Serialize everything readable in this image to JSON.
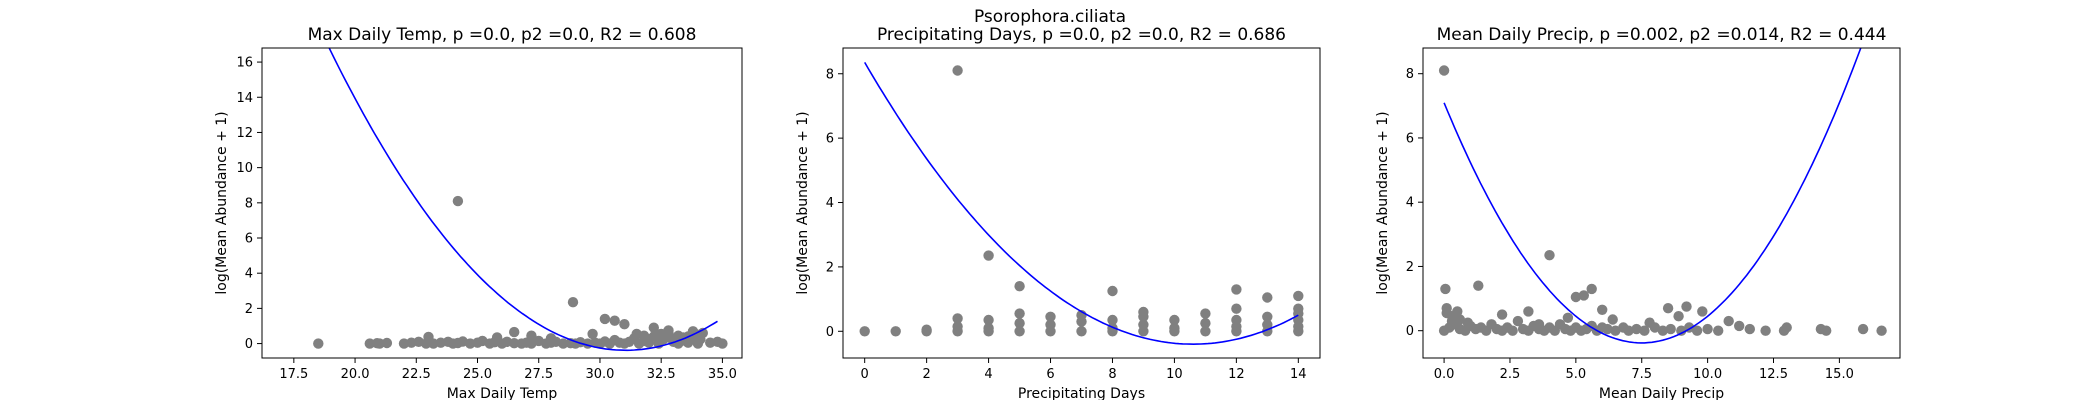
{
  "figure": {
    "suptitle": "Psorophora.ciliata"
  },
  "colors": {
    "points": "#808080",
    "fit": "#0000ff",
    "axes": "#000000"
  },
  "chart_data": [
    {
      "type": "scatter",
      "title": "Max Daily Temp, p =0.0, p2 =0.0, R2 = 0.608",
      "xlabel": "Max Daily Temp",
      "ylabel": "log(Mean Abundance + 1)",
      "xlim": [
        16.2,
        35.8
      ],
      "ylim": [
        -0.82,
        16.8
      ],
      "xticks": [
        17.5,
        20.0,
        22.5,
        25.0,
        27.5,
        30.0,
        32.5,
        35.0
      ],
      "xtick_labels": [
        "17.5",
        "20.0",
        "22.5",
        "25.0",
        "27.5",
        "30.0",
        "32.5",
        "35.0"
      ],
      "yticks": [
        0,
        2,
        4,
        6,
        8,
        10,
        12,
        14,
        16
      ],
      "ytick_labels": [
        "0",
        "2",
        "4",
        "6",
        "8",
        "10",
        "12",
        "14",
        "16"
      ],
      "points": {
        "x": [
          18.5,
          20.6,
          20.9,
          21.0,
          21.3,
          22.0,
          22.3,
          22.6,
          22.9,
          23.0,
          23.2,
          23.5,
          23.8,
          24.0,
          24.2,
          24.4,
          24.7,
          25.0,
          25.2,
          25.5,
          25.7,
          26.0,
          26.2,
          26.5,
          26.8,
          27.0,
          27.2,
          27.5,
          27.8,
          28.0,
          28.2,
          28.5,
          28.8,
          29.0,
          29.2,
          29.5,
          29.8,
          30.0,
          30.2,
          30.4,
          30.6,
          30.8,
          31.0,
          31.2,
          31.4,
          31.6,
          31.8,
          32.0,
          32.2,
          32.4,
          32.6,
          32.8,
          33.0,
          33.2,
          33.4,
          33.6,
          33.8,
          34.0,
          34.2,
          34.5,
          34.8,
          35.0,
          24.2,
          28.9,
          30.6,
          31.0,
          32.2,
          32.5,
          32.8,
          33.2,
          33.6,
          34.0,
          33.9,
          32.0,
          29.7,
          26.5,
          27.2,
          28.0,
          23.0,
          31.5,
          32.9,
          33.5,
          34.1,
          30.2,
          25.8,
          31.8
        ],
        "y": [
          0.0,
          0.0,
          0.02,
          0.0,
          0.03,
          0.0,
          0.05,
          0.1,
          0.0,
          0.38,
          0.0,
          0.05,
          0.1,
          0.0,
          0.03,
          0.12,
          0.0,
          0.05,
          0.15,
          0.0,
          0.08,
          0.0,
          0.1,
          0.02,
          0.0,
          0.05,
          0.0,
          0.15,
          0.0,
          0.05,
          0.1,
          0.0,
          0.02,
          0.0,
          0.08,
          0.0,
          0.05,
          0.0,
          0.12,
          0.0,
          0.2,
          0.05,
          0.0,
          0.1,
          0.3,
          0.0,
          0.15,
          0.05,
          0.4,
          0.0,
          0.25,
          0.6,
          0.1,
          0.0,
          0.35,
          0.05,
          0.7,
          0.0,
          0.6,
          0.05,
          0.1,
          0.0,
          8.1,
          2.35,
          1.3,
          1.1,
          0.9,
          0.55,
          0.75,
          0.45,
          0.4,
          0.5,
          0.2,
          0.25,
          0.55,
          0.65,
          0.45,
          0.3,
          0.2,
          0.55,
          0.3,
          0.15,
          0.25,
          1.4,
          0.35,
          0.45
        ]
      },
      "fit": {
        "a": 0.1172,
        "vertex_x": 31.05,
        "vertex_y": -0.38,
        "x_range": [
          17.1,
          34.8
        ]
      }
    },
    {
      "type": "scatter",
      "title": "Precipitating Days, p =0.0, p2 =0.0, R2 = 0.686",
      "xlabel": "Precipitating Days",
      "ylabel": "log(Mean Abundance + 1)",
      "xlim": [
        -0.7,
        14.7
      ],
      "ylim": [
        -0.83,
        8.8
      ],
      "xticks": [
        0,
        2,
        4,
        6,
        8,
        10,
        12,
        14
      ],
      "xtick_labels": [
        "0",
        "2",
        "4",
        "6",
        "8",
        "10",
        "12",
        "14"
      ],
      "yticks": [
        0,
        2,
        4,
        6,
        8
      ],
      "ytick_labels": [
        "0",
        "2",
        "4",
        "6",
        "8"
      ],
      "points": {
        "x": [
          0,
          1,
          2,
          2,
          3,
          3,
          3,
          3,
          4,
          4,
          4,
          4,
          5,
          5,
          5,
          5,
          6,
          6,
          6,
          7,
          7,
          7,
          8,
          8,
          8,
          8,
          9,
          9,
          9,
          9,
          10,
          10,
          10,
          11,
          11,
          11,
          12,
          12,
          12,
          12,
          12,
          13,
          13,
          13,
          13,
          14,
          14,
          14,
          14,
          14,
          14
        ],
        "y": [
          0.0,
          0.0,
          0.0,
          0.05,
          8.1,
          0.4,
          0.15,
          0.0,
          2.35,
          0.35,
          0.1,
          0.0,
          1.4,
          0.55,
          0.25,
          0.0,
          0.45,
          0.2,
          0.0,
          0.5,
          0.3,
          0.0,
          1.25,
          0.35,
          0.1,
          0.0,
          0.6,
          0.45,
          0.2,
          0.0,
          0.35,
          0.1,
          0.0,
          0.55,
          0.25,
          0.0,
          1.3,
          0.7,
          0.35,
          0.15,
          0.0,
          1.05,
          0.45,
          0.2,
          0.0,
          1.1,
          0.7,
          0.55,
          0.35,
          0.15,
          0.0
        ]
      },
      "fit": {
        "a": 0.0779,
        "vertex_x": 10.6,
        "vertex_y": -0.4,
        "x_range": [
          0,
          14
        ]
      }
    },
    {
      "type": "scatter",
      "title": "Mean Daily Precip, p =0.002, p2 =0.014, R2 = 0.444",
      "xlabel": "Mean Daily Precip",
      "ylabel": "log(Mean Abundance + 1)",
      "xlim": [
        -0.8,
        17.3
      ],
      "ylim": [
        -0.85,
        8.8
      ],
      "xticks": [
        0.0,
        2.5,
        5.0,
        7.5,
        10.0,
        12.5,
        15.0
      ],
      "xtick_labels": [
        "0.0",
        "2.5",
        "5.0",
        "7.5",
        "10.0",
        "12.5",
        "15.0"
      ],
      "yticks": [
        0,
        2,
        4,
        6,
        8
      ],
      "ytick_labels": [
        "0",
        "2",
        "4",
        "6",
        "8"
      ],
      "points": {
        "x": [
          0.0,
          0.0,
          0.05,
          0.1,
          0.2,
          0.3,
          0.4,
          0.5,
          0.6,
          0.8,
          1.0,
          1.2,
          1.4,
          1.6,
          1.8,
          2.0,
          2.2,
          2.4,
          2.6,
          2.8,
          3.0,
          3.2,
          3.4,
          3.6,
          3.8,
          4.0,
          4.2,
          4.4,
          4.6,
          4.8,
          5.0,
          5.2,
          5.4,
          5.6,
          5.8,
          6.0,
          6.2,
          6.5,
          6.8,
          7.0,
          7.3,
          7.6,
          8.0,
          8.3,
          8.6,
          9.0,
          9.3,
          9.6,
          10.0,
          10.4,
          10.8,
          11.2,
          11.6,
          12.2,
          12.9,
          13.0,
          14.3,
          14.5,
          15.9,
          16.6,
          0.1,
          4.0,
          1.3,
          5.0,
          5.3,
          5.6,
          0.3,
          0.6,
          2.2,
          3.2,
          8.5,
          9.2,
          4.7,
          6.4,
          7.8,
          9.8,
          3.6,
          6.0,
          0.9,
          8.9
        ],
        "y": [
          8.1,
          0.0,
          1.3,
          0.55,
          0.1,
          0.3,
          0.2,
          0.6,
          0.05,
          0.0,
          0.15,
          0.05,
          0.1,
          0.0,
          0.2,
          0.05,
          0.0,
          0.1,
          0.0,
          0.3,
          0.05,
          0.0,
          0.15,
          0.05,
          0.0,
          0.1,
          0.0,
          0.2,
          0.05,
          0.0,
          0.1,
          0.0,
          0.05,
          0.15,
          0.0,
          0.1,
          0.05,
          0.0,
          0.1,
          0.0,
          0.05,
          0.0,
          0.1,
          0.0,
          0.05,
          0.0,
          0.1,
          0.0,
          0.05,
          0.0,
          0.3,
          0.15,
          0.05,
          0.0,
          0.0,
          0.1,
          0.05,
          0.0,
          0.05,
          0.0,
          0.7,
          2.35,
          1.4,
          1.05,
          1.1,
          1.3,
          0.45,
          0.35,
          0.5,
          0.6,
          0.7,
          0.75,
          0.4,
          0.35,
          0.25,
          0.6,
          0.2,
          0.65,
          0.25,
          0.45
        ]
      },
      "fit": {
        "a": 0.1329,
        "vertex_x": 7.5,
        "vertex_y": -0.38,
        "x_range": [
          0,
          16.6
        ]
      }
    }
  ]
}
